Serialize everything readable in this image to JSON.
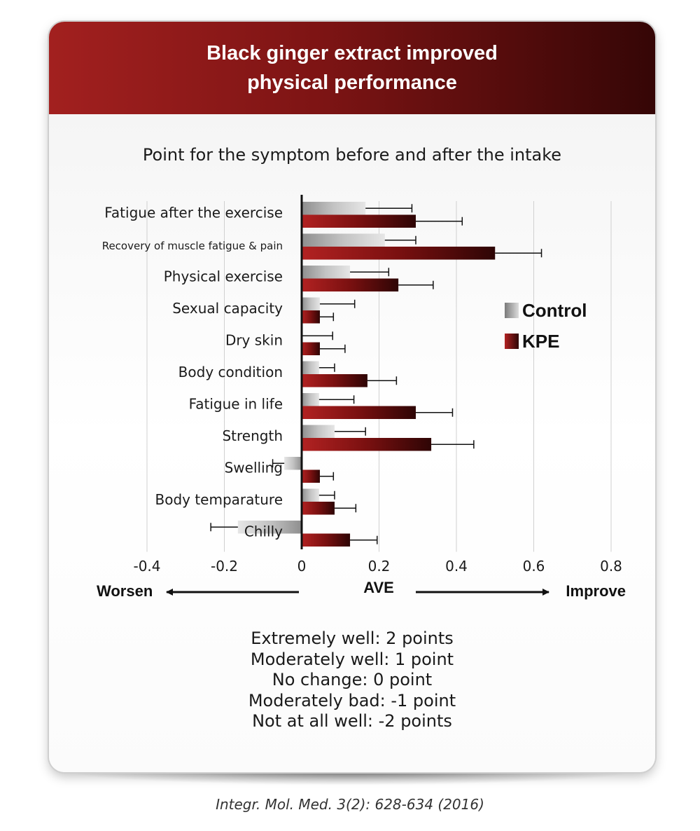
{
  "header": {
    "title": "Black ginger extract improved physical performance"
  },
  "chart_data": {
    "type": "bar",
    "orientation": "horizontal",
    "title": "Point for the symptom before and after the intake",
    "categories": [
      "Fatigue after the exercise",
      "Recovery of muscle fatigue & pain",
      "Physical exercise",
      "Sexual capacity",
      "Dry skin",
      "Body condition",
      "Fatigue in life",
      "Strength",
      "Swelling",
      "Body temparature",
      "Chilly"
    ],
    "series": [
      {
        "name": "Control",
        "values": [
          0.165,
          0.215,
          0.125,
          0.047,
          0.0,
          0.045,
          0.045,
          0.085,
          -0.045,
          0.045,
          -0.165
        ],
        "errors": [
          0.12,
          0.08,
          0.1,
          0.09,
          0.08,
          0.04,
          0.09,
          0.08,
          0.03,
          0.04,
          0.07
        ]
      },
      {
        "name": "KPE",
        "values": [
          0.295,
          0.5,
          0.25,
          0.047,
          0.047,
          0.17,
          0.295,
          0.335,
          0.047,
          0.085,
          0.125
        ],
        "errors": [
          0.12,
          0.12,
          0.09,
          0.035,
          0.065,
          0.075,
          0.095,
          0.11,
          0.035,
          0.055,
          0.07
        ]
      }
    ],
    "xlim": [
      -0.4,
      0.8
    ],
    "xticks": [
      "-0.4",
      "-0.2",
      "0",
      "0.2",
      "0.4",
      "0.6",
      "0.8"
    ],
    "xlabel": "AVE",
    "left_annotation": "Worsen",
    "right_annotation": "Improve",
    "grid": "vertical",
    "legend_position": "right",
    "colors": {
      "Control": "#a0a0a0",
      "KPE": "#7a1010"
    }
  },
  "scale_notes": [
    "Extremely well: 2 points",
    "Moderately well: 1 point",
    "No change: 0 point",
    "Moderately bad: -1 point",
    "Not at all well: -2 points"
  ],
  "citation": "Integr. Mol. Med. 3(2): 628-634 (2016)"
}
